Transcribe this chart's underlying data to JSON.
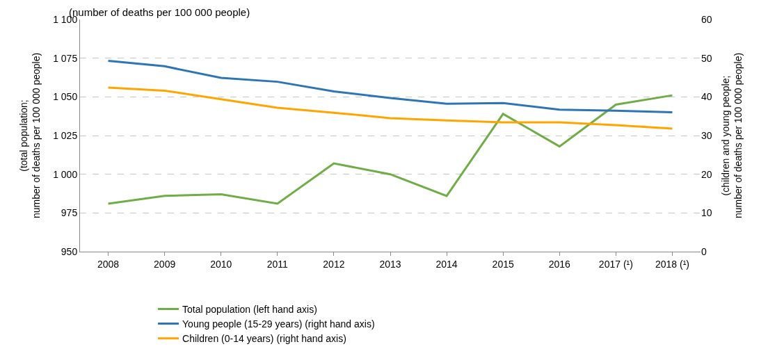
{
  "chart_data": {
    "type": "line",
    "subtitle": "(number of deaths per 100 000 people)",
    "ylabel": "(total population;\nnumber of deaths per 100 000 people)",
    "y2label": "(children and young people;\nnumber of deaths per 100 000 people)",
    "categories": [
      "2008",
      "2009",
      "2010",
      "2011",
      "2012",
      "2013",
      "2014",
      "2015",
      "2016",
      "2017 (¹)",
      "2018 (¹)"
    ],
    "series": [
      {
        "name": "Total population (left hand axis)",
        "color": "#70ad47",
        "values": [
          981,
          986,
          987,
          981,
          1007,
          1000,
          986,
          1039,
          1018,
          1045,
          1051
        ]
      },
      {
        "name": "Young people (15-29 years) (right hand axis)",
        "color": "#2e75b6",
        "axis": "y2",
        "values": [
          49.3,
          47.9,
          44.9,
          43.9,
          41.4,
          39.7,
          38.2,
          38.4,
          36.7,
          36.4,
          36.0
        ]
      },
      {
        "name": "Children (0-14 years) (right hand axis)",
        "color": "#ffa500",
        "axis": "y2",
        "values": [
          42.4,
          41.6,
          39.4,
          37.2,
          35.9,
          34.5,
          33.9,
          33.4,
          33.4,
          32.7,
          31.8
        ]
      }
    ],
    "ylim": [
      950,
      1100
    ],
    "yticks": [
      950,
      975,
      {
        "value": 1000,
        "label": "1 000"
      },
      {
        "value": 1025,
        "label": "1 025"
      },
      {
        "value": 1050,
        "label": "1 050"
      },
      {
        "value": 1075,
        "label": "1 075"
      },
      {
        "value": 1100,
        "label": "1 100"
      }
    ],
    "y2lim": [
      0,
      60
    ],
    "y2ticks": [
      0,
      10,
      20,
      30,
      40,
      50,
      60
    ],
    "grid": "y",
    "legend": "bottom",
    "marker": "none",
    "line_style": "solid"
  }
}
